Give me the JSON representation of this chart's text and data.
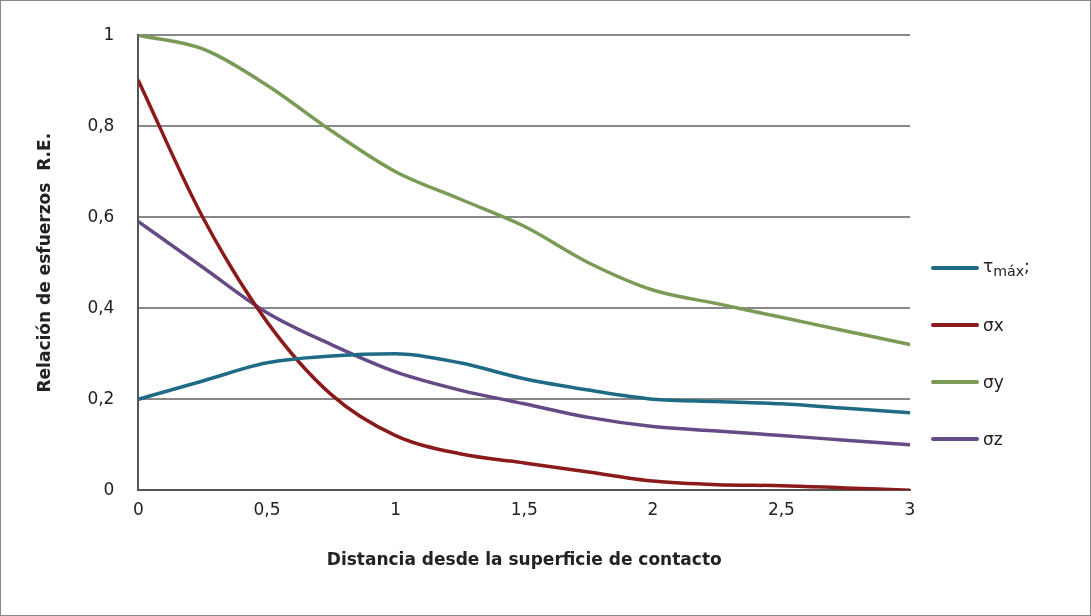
{
  "chart_data": {
    "type": "line",
    "xlabel": "Distancia desde la superficie de contacto",
    "ylabel": "Relación de esfuerzos  R.E.",
    "x": [
      0,
      0.25,
      0.5,
      0.75,
      1,
      1.25,
      1.5,
      1.75,
      2,
      2.25,
      2.5,
      2.75,
      3
    ],
    "series": [
      {
        "name": "τ$_{máx}$;",
        "color": "#1f6b85",
        "values": [
          0.2,
          0.24,
          0.28,
          0.295,
          0.3,
          0.28,
          0.245,
          0.22,
          0.2,
          0.195,
          0.19,
          0.18,
          0.17
        ]
      },
      {
        "name": "σx",
        "color": "#8b1a1a",
        "values": [
          0.9,
          0.6,
          0.37,
          0.21,
          0.12,
          0.08,
          0.06,
          0.04,
          0.02,
          0.012,
          0.01,
          0.005,
          0
        ]
      },
      {
        "name": "σy",
        "color": "#7a9a55",
        "values": [
          1,
          0.97,
          0.89,
          0.79,
          0.7,
          0.64,
          0.58,
          0.5,
          0.44,
          0.41,
          0.38,
          0.35,
          0.32
        ]
      },
      {
        "name": "σz",
        "color": "#654a85",
        "values": [
          0.59,
          0.49,
          0.39,
          0.32,
          0.26,
          0.22,
          0.19,
          0.16,
          0.14,
          0.13,
          0.12,
          0.11,
          0.1
        ]
      }
    ],
    "xlim": [
      0,
      3
    ],
    "xticks": [
      {
        "value": 0,
        "label": "0"
      },
      {
        "value": 0.5,
        "label": "0,5"
      },
      {
        "value": 1,
        "label": "1"
      },
      {
        "value": 1.5,
        "label": "1,5"
      },
      {
        "value": 2,
        "label": "2"
      },
      {
        "value": 2.5,
        "label": "2,5"
      },
      {
        "value": 3,
        "label": "3"
      }
    ],
    "ylim": [
      0,
      1
    ],
    "yticks": [
      {
        "value": 0,
        "label": "0"
      },
      {
        "value": 0.2,
        "label": "0,2"
      },
      {
        "value": 0.4,
        "label": "0,4"
      },
      {
        "value": 0.6,
        "label": "0,6"
      },
      {
        "value": 0.8,
        "label": "0,8"
      },
      {
        "value": 1,
        "label": "1"
      }
    ],
    "grid": "y",
    "legend": "right",
    "marker": "none",
    "line_style": "solid"
  }
}
